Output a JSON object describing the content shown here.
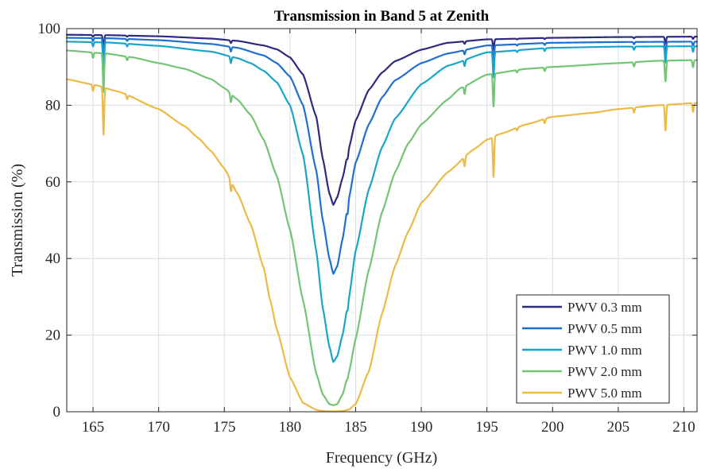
{
  "chart_data": {
    "type": "line",
    "title": "Transmission in Band 5 at Zenith",
    "xlabel": "Frequency (GHz)",
    "ylabel": "Transmission (%)",
    "xlim": [
      163,
      211
    ],
    "ylim": [
      0,
      100
    ],
    "xticks": [
      165,
      170,
      175,
      180,
      185,
      190,
      195,
      200,
      205,
      210
    ],
    "yticks": [
      0,
      20,
      40,
      60,
      80,
      100
    ],
    "grid": true,
    "legend_position": "lower-right",
    "absorption_lines": [
      {
        "x": 165.0,
        "depth": 0.9
      },
      {
        "x": 165.8,
        "depth": 6.5
      },
      {
        "x": 167.6,
        "depth": 0.6
      },
      {
        "x": 175.5,
        "depth": 1.4
      },
      {
        "x": 184.4,
        "depth": 3.0
      },
      {
        "x": 193.3,
        "depth": 1.3
      },
      {
        "x": 195.5,
        "depth": 5.5
      },
      {
        "x": 197.3,
        "depth": 0.4
      },
      {
        "x": 199.4,
        "depth": 0.6
      },
      {
        "x": 206.2,
        "depth": 0.7
      },
      {
        "x": 208.6,
        "depth": 3.5
      },
      {
        "x": 210.7,
        "depth": 1.2
      }
    ],
    "series": [
      {
        "name": "PWV 0.3 mm",
        "color": "#2e2a7f",
        "x": [
          163,
          166,
          170,
          174,
          176,
          178,
          179,
          180,
          181,
          182,
          182.5,
          183,
          183.3,
          183.6,
          184,
          184.5,
          185,
          186,
          187,
          188,
          190,
          192,
          195,
          200,
          205,
          211
        ],
        "y": [
          98.4,
          98.3,
          98.0,
          97.4,
          96.8,
          95.6,
          94.6,
          92.5,
          88.0,
          77.0,
          66.0,
          57.0,
          54.0,
          56.0,
          61.0,
          69.0,
          76.0,
          84.0,
          88.5,
          91.5,
          94.5,
          96.3,
          97.2,
          97.6,
          97.8,
          97.9
        ]
      },
      {
        "name": "PWV 0.5 mm",
        "color": "#1f6fd0",
        "x": [
          163,
          166,
          170,
          174,
          176,
          178,
          179,
          180,
          181,
          182,
          182.5,
          183,
          183.3,
          183.6,
          184,
          184.5,
          185,
          186,
          187,
          188,
          190,
          192,
          195,
          200,
          205,
          211
        ],
        "y": [
          97.6,
          97.5,
          97.0,
          96.0,
          95.0,
          93.0,
          91.0,
          87.5,
          80.0,
          63.0,
          50.0,
          40.0,
          36.0,
          38.0,
          45.0,
          56.0,
          65.0,
          75.0,
          82.0,
          86.5,
          91.0,
          93.5,
          95.6,
          96.3,
          96.5,
          96.6
        ]
      },
      {
        "name": "PWV 1.0 mm",
        "color": "#17a5c8",
        "x": [
          163,
          166,
          170,
          174,
          176,
          177,
          178,
          179,
          180,
          181,
          182,
          182.5,
          183,
          183.3,
          183.6,
          184,
          184.5,
          185,
          186,
          187,
          188,
          190,
          192,
          195,
          200,
          205,
          211
        ],
        "y": [
          96.6,
          96.4,
          95.5,
          94.0,
          92.3,
          91.0,
          89.0,
          86.0,
          80.0,
          67.0,
          42.0,
          27.0,
          17.0,
          13.0,
          14.5,
          20.0,
          30.0,
          42.0,
          58.0,
          69.0,
          76.5,
          85.5,
          90.3,
          93.8,
          95.0,
          95.3,
          95.4
        ]
      },
      {
        "name": "PWV 2.0 mm",
        "color": "#74c476",
        "x": [
          163,
          166,
          168,
          170,
          172,
          174,
          175,
          176,
          177,
          178,
          179,
          180,
          181,
          182,
          182.5,
          183,
          183.3,
          183.6,
          184,
          184.5,
          185,
          186,
          187,
          188,
          189,
          190,
          192,
          193,
          195,
          198,
          200,
          205,
          208,
          211
        ],
        "y": [
          94.3,
          93.5,
          92.5,
          91.0,
          89.5,
          86.8,
          84.5,
          81.5,
          77.5,
          71.0,
          61.5,
          47.5,
          29.0,
          10.0,
          4.5,
          2.0,
          1.7,
          2.0,
          4.5,
          10.5,
          19.0,
          37.0,
          52.0,
          62.5,
          70.0,
          75.0,
          81.5,
          84.5,
          88.0,
          89.5,
          90.0,
          91.0,
          91.6,
          91.8
        ]
      },
      {
        "name": "PWV 5.0 mm",
        "color": "#ebba47",
        "x": [
          163,
          165,
          167,
          170,
          172,
          173,
          174,
          175,
          176,
          177,
          178,
          178.5,
          179,
          180,
          181,
          182,
          182.5,
          183,
          183.5,
          184,
          184.5,
          185,
          186,
          187,
          188,
          189,
          190,
          192,
          194,
          195,
          196,
          198,
          200,
          203,
          205,
          208,
          211
        ],
        "y": [
          86.8,
          85.4,
          83.5,
          79.0,
          74.5,
          71.5,
          68.0,
          63.5,
          57.0,
          49.0,
          37.5,
          29.0,
          21.5,
          9.0,
          2.3,
          0.5,
          0.2,
          0.1,
          0.1,
          0.2,
          0.6,
          2.0,
          10.5,
          25.5,
          38.0,
          47.0,
          54.5,
          62.5,
          68.5,
          71.0,
          72.5,
          75.0,
          77.0,
          78.0,
          79.0,
          80.0,
          80.6
        ]
      }
    ]
  }
}
